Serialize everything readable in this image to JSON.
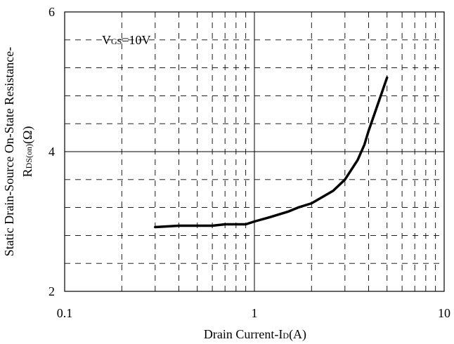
{
  "chart_data": {
    "type": "line",
    "xscale": "log",
    "xlim": [
      0.1,
      10
    ],
    "ylim": [
      2,
      6
    ],
    "xticks": [
      {
        "value": 0.1,
        "label": "0.1"
      },
      {
        "value": 1,
        "label": "1"
      },
      {
        "value": 10,
        "label": "10"
      }
    ],
    "yticks": [
      {
        "value": 2,
        "label": "2"
      },
      {
        "value": 4,
        "label": "4"
      },
      {
        "value": 6,
        "label": "6"
      }
    ],
    "xlabel": {
      "main": "Drain Current-I",
      "sub": "D",
      "tail": "(A)"
    },
    "ylabel": {
      "line1": "Static Drain-Source On-State Resistance-",
      "line2_main": "R",
      "line2_sub": "DS(on)",
      "line2_tail": "(Ω)"
    },
    "annotation": {
      "main": "V",
      "sub": "GS",
      "tail": "=10V"
    },
    "grid": true,
    "series": [
      {
        "name": "",
        "color": "#000000",
        "points": [
          {
            "x": 0.3,
            "y": 2.92
          },
          {
            "x": 0.4,
            "y": 2.94
          },
          {
            "x": 0.5,
            "y": 2.94
          },
          {
            "x": 0.6,
            "y": 2.94
          },
          {
            "x": 0.7,
            "y": 2.96
          },
          {
            "x": 0.8,
            "y": 2.96
          },
          {
            "x": 0.9,
            "y": 2.96
          },
          {
            "x": 1.0,
            "y": 3.0
          },
          {
            "x": 1.2,
            "y": 3.06
          },
          {
            "x": 1.5,
            "y": 3.14
          },
          {
            "x": 1.7,
            "y": 3.2
          },
          {
            "x": 2.0,
            "y": 3.26
          },
          {
            "x": 2.6,
            "y": 3.44
          },
          {
            "x": 3.0,
            "y": 3.6
          },
          {
            "x": 3.5,
            "y": 3.88
          },
          {
            "x": 3.8,
            "y": 4.1
          },
          {
            "x": 4.0,
            "y": 4.3
          },
          {
            "x": 4.5,
            "y": 4.7
          },
          {
            "x": 5.0,
            "y": 5.06
          }
        ]
      }
    ]
  }
}
